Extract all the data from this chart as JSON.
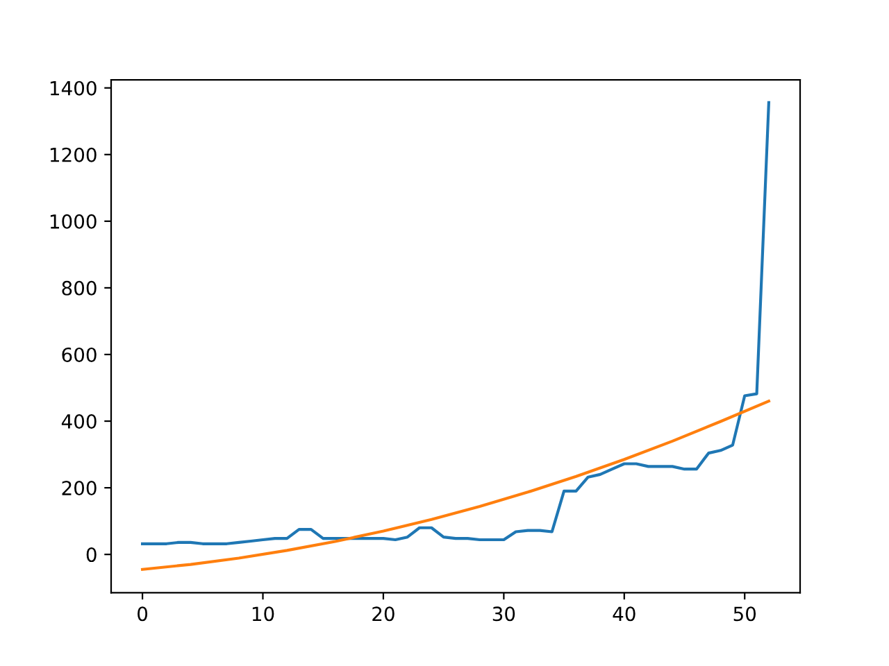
{
  "chart_data": {
    "type": "line",
    "xlim": [
      -2.6,
      54.6
    ],
    "xticks": [
      0,
      10,
      20,
      30,
      40,
      50
    ],
    "ylim": [
      -115,
      1424
    ],
    "yticks": [
      0,
      200,
      400,
      600,
      800,
      1000,
      1200,
      1400
    ],
    "grid": false,
    "legend": false,
    "series": [
      {
        "color": "#1f77b4",
        "x": [
          0,
          1,
          2,
          3,
          4,
          5,
          6,
          7,
          8,
          9,
          10,
          11,
          12,
          13,
          14,
          15,
          16,
          17,
          18,
          19,
          20,
          21,
          22,
          23,
          24,
          25,
          26,
          27,
          28,
          29,
          30,
          31,
          32,
          33,
          34,
          35,
          36,
          37,
          38,
          39,
          40,
          41,
          42,
          43,
          44,
          45,
          46,
          47,
          48,
          49,
          50,
          51,
          52
        ],
        "values": [
          32,
          32,
          32,
          36,
          36,
          32,
          32,
          32,
          36,
          40,
          44,
          48,
          48,
          75,
          75,
          48,
          48,
          48,
          48,
          48,
          48,
          44,
          52,
          80,
          80,
          52,
          48,
          48,
          44,
          44,
          44,
          68,
          72,
          72,
          68,
          190,
          190,
          232,
          240,
          256,
          272,
          272,
          264,
          264,
          264,
          256,
          256,
          304,
          312,
          328,
          476,
          482,
          1356
        ]
      },
      {
        "color": "#ff7f0e",
        "x": [
          0,
          4,
          8,
          12,
          16,
          20,
          24,
          28,
          32,
          36,
          40,
          44,
          48,
          52
        ],
        "values": [
          -45,
          -30,
          -11,
          12,
          39,
          70,
          105,
          144,
          187,
          234,
          285,
          340,
          399,
          460
        ]
      }
    ]
  }
}
